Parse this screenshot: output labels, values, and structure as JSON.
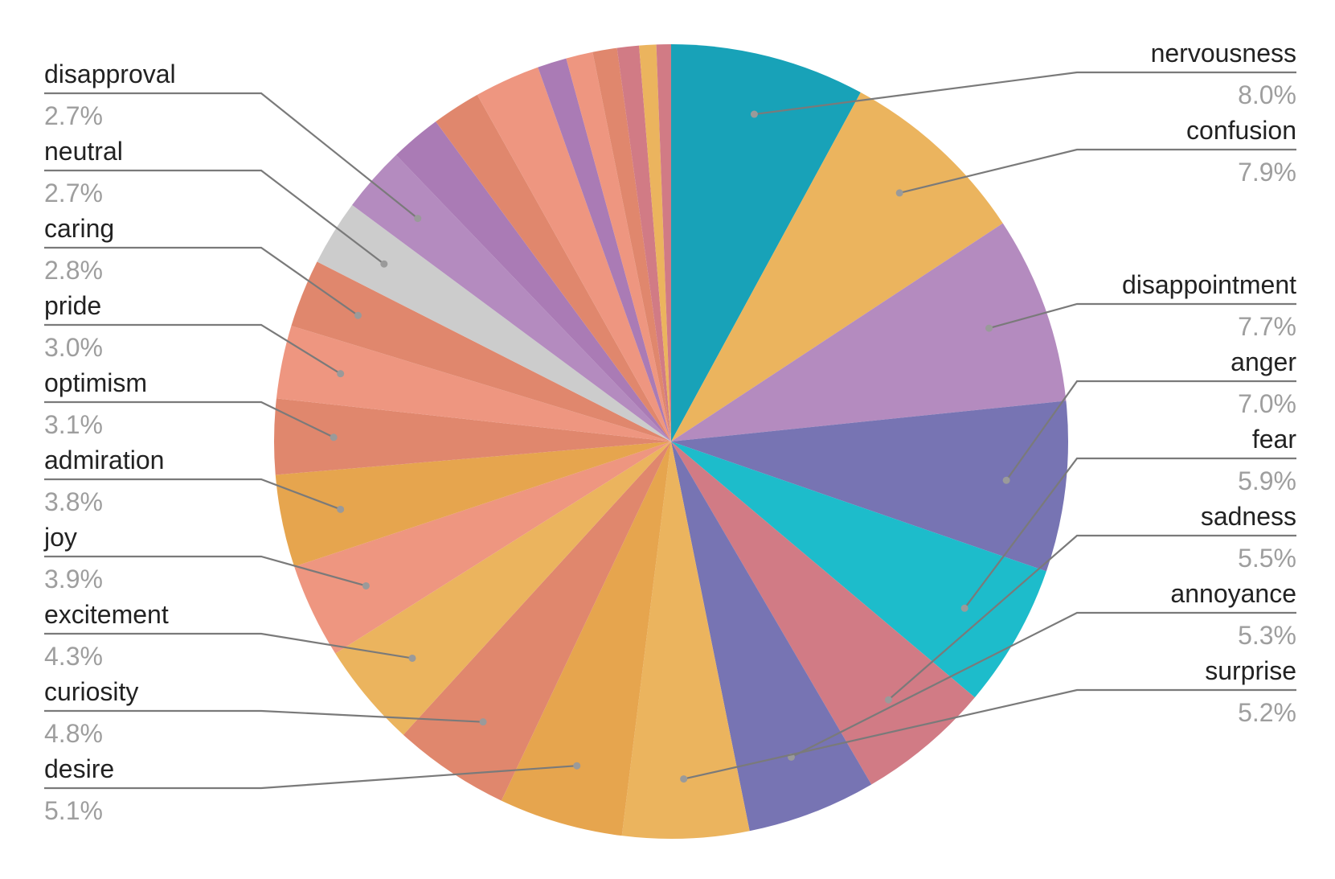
{
  "chart_data": {
    "type": "pie",
    "title": "",
    "slices": [
      {
        "label": "nervousness",
        "value": 8.0,
        "percent_label": "8.0%",
        "color": "#18a2b8"
      },
      {
        "label": "confusion",
        "value": 7.9,
        "percent_label": "7.9%",
        "color": "#ebb45e"
      },
      {
        "label": "disappointment",
        "value": 7.7,
        "percent_label": "7.7%",
        "color": "#b48bbf"
      },
      {
        "label": "anger",
        "value": 7.0,
        "percent_label": "7.0%",
        "color": "#7774b3"
      },
      {
        "label": "fear",
        "value": 5.9,
        "percent_label": "5.9%",
        "color": "#1dbccb"
      },
      {
        "label": "sadness",
        "value": 5.5,
        "percent_label": "5.5%",
        "color": "#d17b85"
      },
      {
        "label": "annoyance",
        "value": 5.3,
        "percent_label": "5.3%",
        "color": "#7774b3"
      },
      {
        "label": "surprise",
        "value": 5.2,
        "percent_label": "5.2%",
        "color": "#ebb45e"
      },
      {
        "label": "desire",
        "value": 5.1,
        "percent_label": "5.1%",
        "color": "#e6a54e"
      },
      {
        "label": "curiosity",
        "value": 4.8,
        "percent_label": "4.8%",
        "color": "#e0876d"
      },
      {
        "label": "excitement",
        "value": 4.3,
        "percent_label": "4.3%",
        "color": "#ebb45e"
      },
      {
        "label": "joy",
        "value": 3.9,
        "percent_label": "3.9%",
        "color": "#ee9680"
      },
      {
        "label": "admiration",
        "value": 3.8,
        "percent_label": "3.8%",
        "color": "#e6a54e"
      },
      {
        "label": "optimism",
        "value": 3.1,
        "percent_label": "3.1%",
        "color": "#e0876d"
      },
      {
        "label": "pride",
        "value": 3.0,
        "percent_label": "3.0%",
        "color": "#ee9680"
      },
      {
        "label": "caring",
        "value": 2.8,
        "percent_label": "2.8%",
        "color": "#e0876d"
      },
      {
        "label": "neutral",
        "value": 2.7,
        "percent_label": "2.7%",
        "color": "#cccccc"
      },
      {
        "label": "disapproval",
        "value": 2.7,
        "percent_label": "2.7%",
        "color": "#b48bbf"
      },
      {
        "label": "",
        "value": 2.1,
        "percent_label": "",
        "color": "#aa7bb5"
      },
      {
        "label": "",
        "value": 2.0,
        "percent_label": "",
        "color": "#e0876d"
      },
      {
        "label": "",
        "value": 2.7,
        "percent_label": "",
        "color": "#ee9680"
      },
      {
        "label": "",
        "value": 1.2,
        "percent_label": "",
        "color": "#aa7bb5"
      },
      {
        "label": "",
        "value": 1.1,
        "percent_label": "",
        "color": "#ee9680"
      },
      {
        "label": "",
        "value": 1.0,
        "percent_label": "",
        "color": "#e0876d"
      },
      {
        "label": "",
        "value": 0.9,
        "percent_label": "",
        "color": "#d17b85"
      },
      {
        "label": "",
        "value": 0.7,
        "percent_label": "",
        "color": "#ebb45e"
      },
      {
        "label": "",
        "value": 0.6,
        "percent_label": "",
        "color": "#d17b85"
      }
    ],
    "labels_right": [
      "nervousness",
      "confusion",
      "disappointment",
      "anger",
      "fear",
      "sadness",
      "annoyance",
      "surprise"
    ],
    "labels_left": [
      "disapproval",
      "neutral",
      "caring",
      "pride",
      "optimism",
      "admiration",
      "joy",
      "excitement",
      "curiosity",
      "desire"
    ],
    "start_angle": "top, clockwise",
    "leader_line_color": "#7a7a7a",
    "legend": "none"
  }
}
